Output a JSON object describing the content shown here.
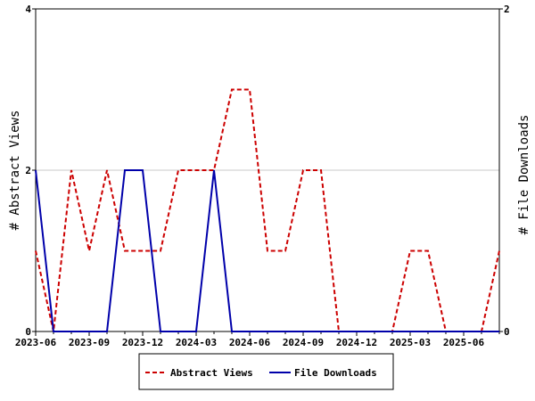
{
  "chart_data": {
    "type": "line",
    "x_labels": [
      "2023-06",
      "2023-07",
      "2023-08",
      "2023-09",
      "2023-10",
      "2023-11",
      "2023-12",
      "2024-01",
      "2024-02",
      "2024-03",
      "2024-04",
      "2024-05",
      "2024-06",
      "2024-07",
      "2024-08",
      "2024-09",
      "2024-10",
      "2024-11",
      "2024-12",
      "2025-01",
      "2025-02",
      "2025-03",
      "2025-04",
      "2025-05",
      "2025-06",
      "2025-07",
      "2025-08"
    ],
    "x_tick_labels": [
      "2023-06",
      "2023-09",
      "2023-12",
      "2024-03",
      "2024-06",
      "2024-09",
      "2024-12",
      "2025-03",
      "2025-06"
    ],
    "ylabel_left": "# Abstract Views",
    "ylabel_right": "# File Downloads",
    "ylim_left": [
      0,
      4
    ],
    "ylim_right": [
      0,
      2
    ],
    "y_ticks_left": [
      "0",
      "2",
      "4"
    ],
    "y_ticks_right": [
      "0",
      "2"
    ],
    "legend_position": "bottom",
    "series": [
      {
        "name": "Abstract Views",
        "axis": "left",
        "color": "#cc0000",
        "style": "dashed",
        "values": [
          1,
          0,
          2,
          1,
          2,
          1,
          1,
          1,
          2,
          2,
          2,
          3,
          3,
          1,
          1,
          2,
          2,
          0,
          0,
          0,
          0,
          1,
          1,
          0,
          0,
          0,
          1
        ]
      },
      {
        "name": "File Downloads",
        "axis": "right",
        "color": "#0000aa",
        "style": "solid",
        "values": [
          1,
          0,
          0,
          0,
          0,
          1,
          1,
          0,
          0,
          0,
          1,
          0,
          0,
          0,
          0,
          0,
          0,
          0,
          0,
          0,
          0,
          0,
          0,
          0,
          0,
          0,
          0
        ]
      }
    ]
  }
}
